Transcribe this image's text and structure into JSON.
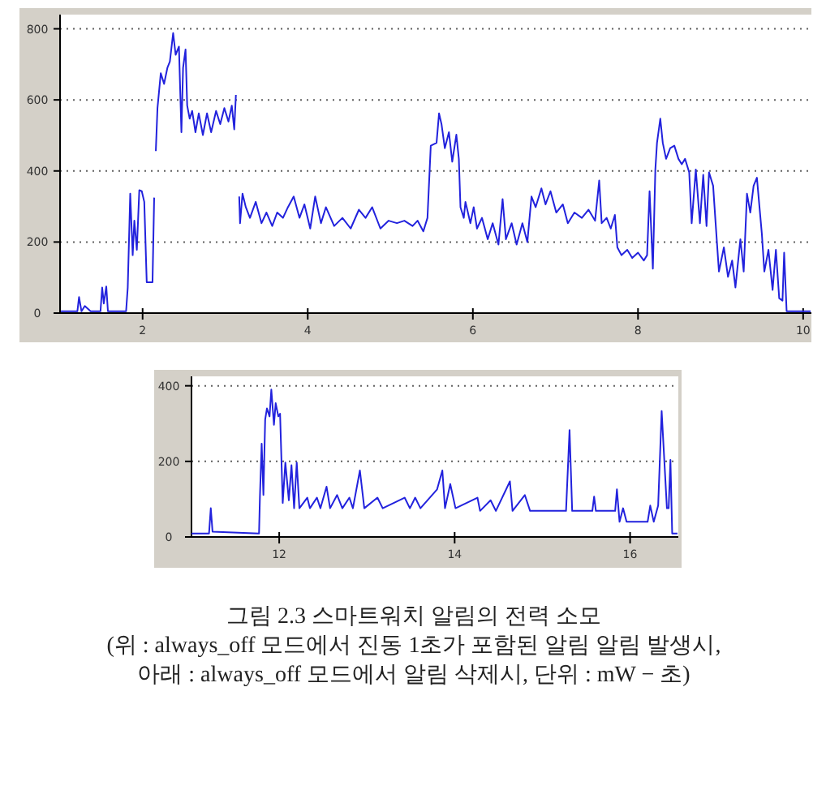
{
  "chart_data": [
    {
      "type": "line",
      "xlim": [
        1,
        10.1
      ],
      "ylim": [
        0,
        840
      ],
      "xticks": [
        2,
        4,
        6,
        8,
        10
      ],
      "yticks": [
        0,
        200,
        400,
        600,
        800
      ],
      "grid": "y",
      "series": [
        {
          "color": "#2222dd",
          "x": [
            1.01,
            1.21,
            1.23,
            1.26,
            1.3,
            1.37,
            1.49,
            1.51,
            1.53,
            1.56,
            1.58,
            1.8,
            1.82,
            1.85,
            1.88,
            1.9,
            1.93,
            1.96,
            1.99,
            2.02,
            2.05,
            2.12,
            2.14
          ],
          "values": [
            5,
            5,
            45,
            5,
            20,
            5,
            5,
            72,
            27,
            75,
            5,
            5,
            72,
            336,
            163,
            260,
            178,
            346,
            343,
            313,
            87,
            87,
            325
          ]
        },
        {
          "color": "#2222dd",
          "x": [
            2.16,
            2.18,
            2.22,
            2.26,
            2.3,
            2.33,
            2.37,
            2.4,
            2.44,
            2.47,
            2.49,
            2.52,
            2.54,
            2.57,
            2.6,
            2.64,
            2.68,
            2.73,
            2.78,
            2.83,
            2.89,
            2.94,
            2.99,
            3.04,
            3.08,
            3.11,
            3.13
          ],
          "values": [
            456,
            577,
            675,
            645,
            690,
            708,
            788,
            727,
            750,
            509,
            690,
            742,
            584,
            547,
            569,
            509,
            562,
            501,
            562,
            509,
            569,
            532,
            577,
            539,
            584,
            517,
            614
          ]
        },
        {
          "color": "#2222dd",
          "x": [
            3.17,
            3.18,
            3.21,
            3.25,
            3.3,
            3.37,
            3.44,
            3.5,
            3.57,
            3.63,
            3.7,
            3.76,
            3.83,
            3.9,
            3.96,
            4.03,
            4.09,
            4.16,
            4.22,
            4.32,
            4.42,
            4.52,
            4.62,
            4.7,
            4.78,
            4.88,
            4.98,
            5.08,
            5.17,
            5.27,
            5.33,
            5.4,
            5.45,
            5.49,
            5.56,
            5.59,
            5.62,
            5.66,
            5.71,
            5.75,
            5.8,
            5.83,
            5.85,
            5.89,
            5.91,
            5.97,
            6.01,
            6.05,
            6.11,
            6.18,
            6.24,
            6.31,
            6.36,
            6.4,
            6.47,
            6.53,
            6.6,
            6.66,
            6.71,
            6.76,
            6.83,
            6.88,
            6.94,
            7.01,
            7.09,
            7.15,
            7.23,
            7.32,
            7.4,
            7.48,
            7.53,
            7.56,
            7.62,
            7.67,
            7.72,
            7.75,
            7.8,
            7.87,
            7.93,
            8.0,
            8.07,
            8.11,
            8.14,
            8.18,
            8.21,
            8.23,
            8.27,
            8.3,
            8.34,
            8.39,
            8.44,
            8.49,
            8.53,
            8.57,
            8.62,
            8.65,
            8.7,
            8.75,
            8.79,
            8.83,
            8.86,
            8.91,
            8.94,
            8.98,
            9.04,
            9.09,
            9.14,
            9.18,
            9.24,
            9.28,
            9.32,
            9.36,
            9.4,
            9.44,
            9.5,
            9.53,
            9.58,
            9.63,
            9.67,
            9.71,
            9.75,
            9.77,
            9.8,
            9.96,
            10.09
          ],
          "values": [
            328,
            253,
            336,
            298,
            268,
            313,
            253,
            283,
            245,
            283,
            268,
            298,
            328,
            268,
            306,
            238,
            328,
            253,
            298,
            245,
            268,
            238,
            291,
            268,
            298,
            238,
            260,
            253,
            260,
            245,
            260,
            230,
            268,
            471,
            479,
            562,
            532,
            464,
            509,
            426,
            502,
            434,
            298,
            268,
            313,
            253,
            298,
            238,
            268,
            208,
            253,
            193,
            321,
            208,
            253,
            193,
            253,
            200,
            328,
            298,
            351,
            306,
            343,
            283,
            306,
            253,
            283,
            268,
            291,
            260,
            373,
            253,
            268,
            238,
            276,
            185,
            163,
            178,
            155,
            170,
            148,
            163,
            343,
            125,
            404,
            479,
            547,
            479,
            434,
            464,
            471,
            434,
            419,
            434,
            396,
            253,
            404,
            253,
            389,
            245,
            396,
            358,
            253,
            117,
            185,
            102,
            148,
            72,
            208,
            117,
            336,
            283,
            358,
            381,
            223,
            117,
            178,
            65,
            178,
            42,
            35,
            170,
            5,
            5,
            5
          ]
        }
      ]
    },
    {
      "type": "line",
      "xlim": [
        11,
        16.55
      ],
      "ylim": [
        0,
        425
      ],
      "xticks": [
        12,
        14,
        16
      ],
      "yticks": [
        0,
        200,
        400
      ],
      "grid": "y",
      "x": [
        11.0,
        11.2,
        11.22,
        11.24,
        11.77,
        11.78,
        11.8,
        11.82,
        11.84,
        11.86,
        11.89,
        11.91,
        11.94,
        11.96,
        11.99,
        12.01,
        12.04,
        12.07,
        12.11,
        12.14,
        12.17,
        12.2,
        12.23,
        12.32,
        12.35,
        12.43,
        12.47,
        12.54,
        12.58,
        12.66,
        12.72,
        12.8,
        12.84,
        12.92,
        12.97,
        13.12,
        13.18,
        13.43,
        13.49,
        13.55,
        13.61,
        13.8,
        13.86,
        13.89,
        13.95,
        14.01,
        14.26,
        14.29,
        14.41,
        14.47,
        14.63,
        14.66,
        14.8,
        14.86,
        15.27,
        15.31,
        15.34,
        15.57,
        15.59,
        15.61,
        15.83,
        15.85,
        15.88,
        15.92,
        15.96,
        16.2,
        16.23,
        16.27,
        16.32,
        16.36,
        16.39,
        16.42,
        16.44,
        16.46,
        16.48,
        16.54
      ],
      "series": [
        {
          "color": "#2222dd",
          "values": [
            9,
            9,
            76,
            14,
            9,
            104,
            247,
            111,
            311,
            340,
            319,
            390,
            297,
            354,
            319,
            326,
            90,
            197,
            97,
            190,
            76,
            197,
            76,
            104,
            76,
            104,
            76,
            133,
            76,
            111,
            76,
            104,
            76,
            176,
            76,
            104,
            76,
            104,
            76,
            104,
            76,
            126,
            176,
            76,
            140,
            76,
            104,
            69,
            97,
            69,
            147,
            69,
            111,
            69,
            69,
            283,
            69,
            69,
            107,
            69,
            69,
            126,
            40,
            76,
            40,
            40,
            83,
            40,
            83,
            333,
            204,
            76,
            76,
            204,
            9,
            9
          ]
        }
      ],
      "annotations": [
        "그림 2.3 스마트워치 알림의 전력 소모",
        "(위 : always_off 모드에서 진동 1초가 포함된 알림 알림 발생시,",
        "아래 : always_off 모드에서 알림 삭제시, 단위 : mW − 초)"
      ]
    }
  ]
}
